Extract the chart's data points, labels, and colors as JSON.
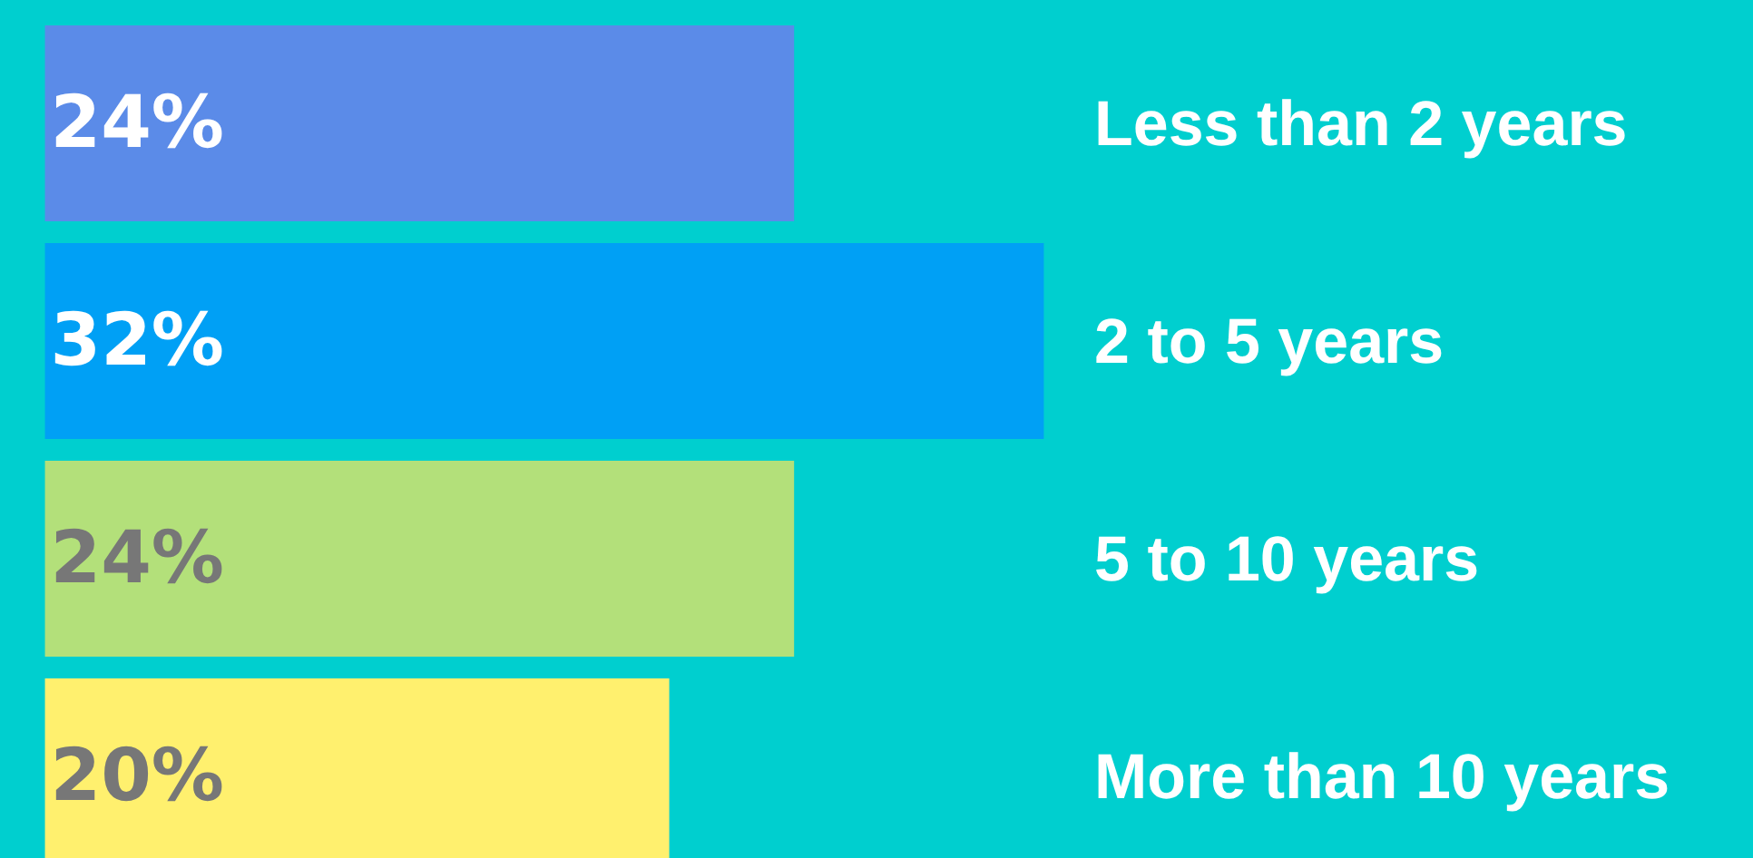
{
  "chart_data": {
    "type": "bar",
    "orientation": "horizontal",
    "categories": [
      "Less than 2 years",
      "2 to 5 years",
      "5 to 10 years",
      "More than 10 years"
    ],
    "values": [
      24,
      32,
      24,
      20
    ],
    "colors": [
      "#5b8be8",
      "#00a0f5",
      "#b3e07a",
      "#fff06e"
    ],
    "value_labels": [
      "24%",
      "32%",
      "24%",
      "20%"
    ]
  }
}
